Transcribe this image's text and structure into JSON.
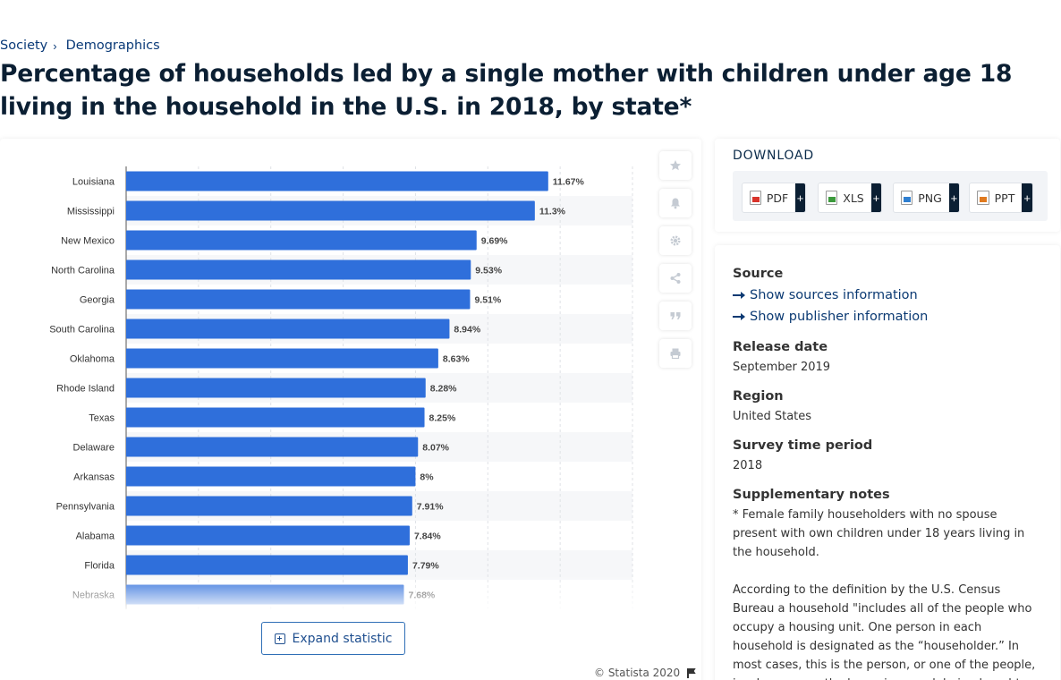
{
  "breadcrumb": {
    "items": [
      "Society",
      "Demographics"
    ],
    "separator": "›"
  },
  "title": "Percentage of households led by a single mother with children under age 18 living in the household in the U.S. in 2018, by state*",
  "chart_data": {
    "type": "bar",
    "orientation": "horizontal",
    "categories": [
      "Louisiana",
      "Mississippi",
      "New Mexico",
      "North Carolina",
      "Georgia",
      "South Carolina",
      "Oklahoma",
      "Rhode Island",
      "Texas",
      "Delaware",
      "Arkansas",
      "Pennsylvania",
      "Alabama",
      "Florida",
      "Nebraska"
    ],
    "values": [
      11.67,
      11.3,
      9.69,
      9.53,
      9.51,
      8.94,
      8.63,
      8.28,
      8.25,
      8.07,
      8,
      7.91,
      7.84,
      7.79,
      7.68
    ],
    "value_labels": [
      "11.67%",
      "11.3%",
      "9.69%",
      "9.53%",
      "9.51%",
      "8.94%",
      "8.63%",
      "8.28%",
      "8.25%",
      "8.07%",
      "8%",
      "7.91%",
      "7.84%",
      "7.79%",
      "7.68%"
    ],
    "xlim": [
      0,
      14
    ],
    "grid": true,
    "bar_color": "#2f6fdb"
  },
  "chart": {
    "expand_label": "Expand statistic",
    "copyright": "© Statista 2020"
  },
  "tools": [
    "star-icon",
    "bell-icon",
    "gear-icon",
    "share-icon",
    "quote-icon",
    "print-icon"
  ],
  "download": {
    "title": "DOWNLOAD",
    "buttons": [
      {
        "label": "PDF",
        "color": "#d9342b"
      },
      {
        "label": "XLS",
        "color": "#3c9a3c"
      },
      {
        "label": "PNG",
        "color": "#2f7fd0"
      },
      {
        "label": "PPT",
        "color": "#e07a1f"
      }
    ],
    "plus": "+"
  },
  "info": {
    "source_heading": "Source",
    "show_sources": "Show sources information",
    "show_publisher": "Show publisher information",
    "release_heading": "Release date",
    "release_value": "September 2019",
    "region_heading": "Region",
    "region_value": "United States",
    "survey_heading": "Survey time period",
    "survey_value": "2018",
    "notes_heading": "Supplementary notes",
    "notes_p1": "* Female family householders with no spouse present with own children under 18 years living in the household.",
    "notes_p2": "According to the definition by the U.S. Census Bureau a household \"includes all of the people who occupy a housing unit. One person in each household is designated as the “householder.” In most cases, this is the person, or one of the people, in whose name the home is owned, being bought, or rented."
  }
}
